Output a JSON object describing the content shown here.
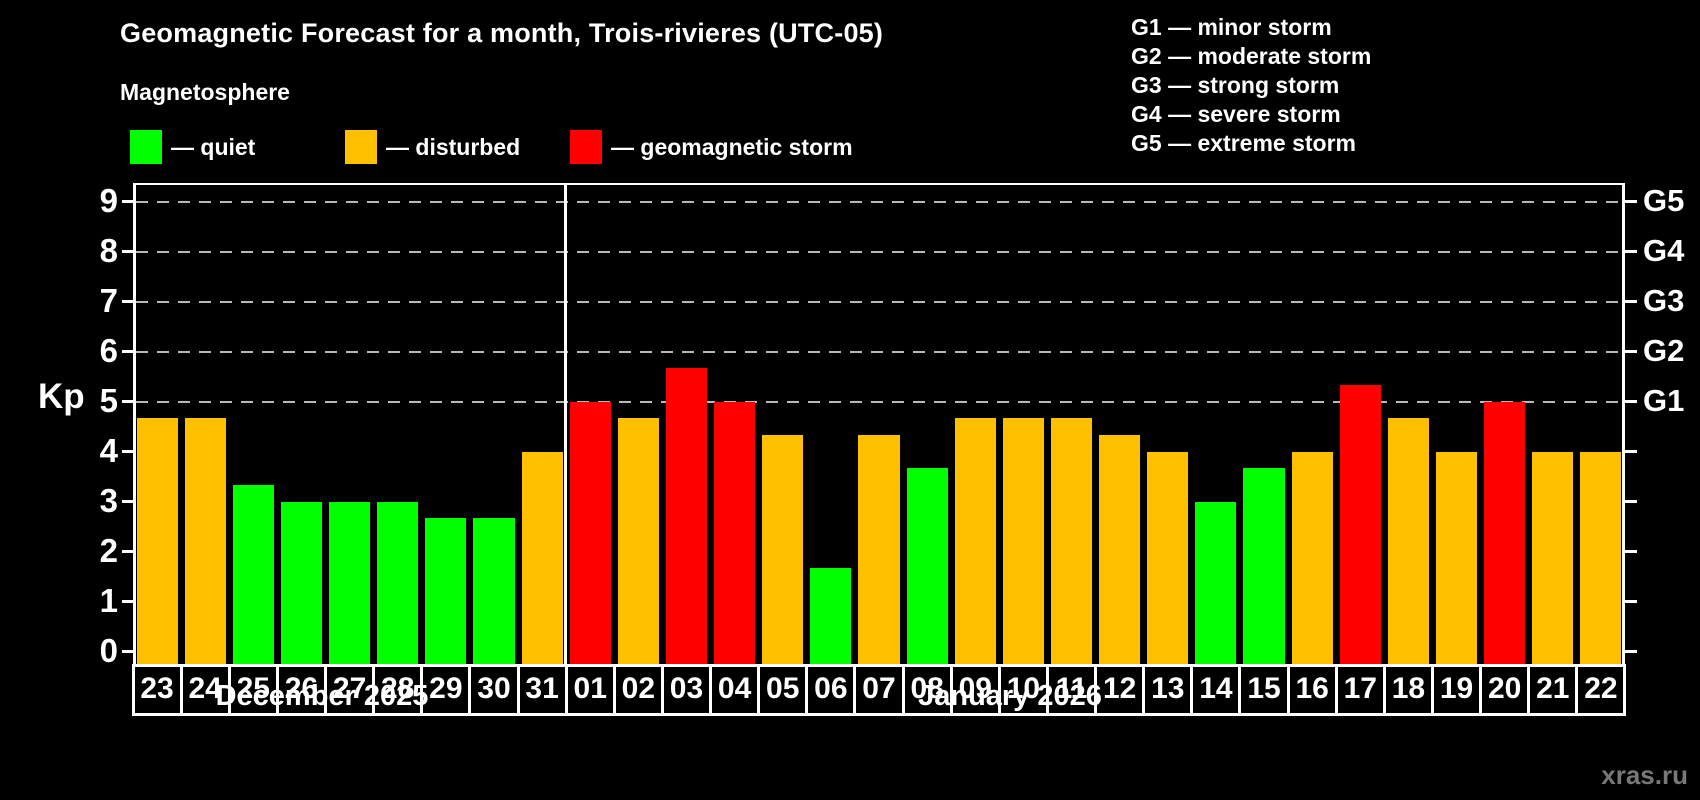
{
  "title": "Geomagnetic Forecast for a month, Trois-rivieres (UTC-05)",
  "subtitle": "Magnetosphere",
  "legend_items": [
    {
      "name": "quiet",
      "label": "— quiet",
      "color": "#00ff00"
    },
    {
      "name": "disturbed",
      "label": "— disturbed",
      "color": "#ffc000"
    },
    {
      "name": "storm",
      "label": "— geomagnetic storm",
      "color": "#ff0000"
    }
  ],
  "g_legend": [
    "G1 — minor storm",
    "G2 — moderate storm",
    "G3 — strong storm",
    "G4 — severe storm",
    "G5 — extreme storm"
  ],
  "watermark": "xras.ru",
  "chart_data": {
    "type": "bar",
    "title": "Geomagnetic Forecast for a month, Trois-rivieres (UTC-05)",
    "ylabel": "Kp",
    "ylim": [
      0,
      9
    ],
    "yticks": [
      0,
      1,
      2,
      3,
      4,
      5,
      6,
      7,
      8,
      9
    ],
    "right_axis_ticks": [
      {
        "kp": 5,
        "label": "G1"
      },
      {
        "kp": 6,
        "label": "G2"
      },
      {
        "kp": 7,
        "label": "G3"
      },
      {
        "kp": 8,
        "label": "G4"
      },
      {
        "kp": 9,
        "label": "G5"
      }
    ],
    "gridlines_at_kp": [
      5,
      6,
      7,
      8,
      9
    ],
    "grid_style": "dashed",
    "legend_position": "top-left",
    "months": [
      {
        "label": "December 2025",
        "start_index": 0,
        "days": 9
      },
      {
        "label": "January 2026",
        "start_index": 9,
        "days": 22
      }
    ],
    "categories": [
      "23",
      "24",
      "25",
      "26",
      "27",
      "28",
      "29",
      "30",
      "31",
      "01",
      "02",
      "03",
      "04",
      "05",
      "06",
      "07",
      "08",
      "09",
      "10",
      "11",
      "12",
      "13",
      "14",
      "15",
      "16",
      "17",
      "18",
      "19",
      "20",
      "21",
      "22"
    ],
    "series": [
      {
        "name": "Kp forecast",
        "values": [
          4.67,
          4.67,
          3.33,
          3,
          3,
          3,
          2.67,
          2.67,
          4,
          5,
          4.67,
          5.67,
          5,
          4.33,
          1.67,
          4.33,
          3.67,
          4.67,
          4.67,
          4.67,
          4.33,
          4,
          3,
          3.67,
          4,
          5.33,
          4.67,
          4,
          5,
          4,
          4
        ]
      }
    ],
    "bar_status": [
      "disturbed",
      "disturbed",
      "quiet",
      "quiet",
      "quiet",
      "quiet",
      "quiet",
      "quiet",
      "disturbed",
      "storm",
      "disturbed",
      "storm",
      "storm",
      "disturbed",
      "quiet",
      "disturbed",
      "quiet",
      "disturbed",
      "disturbed",
      "disturbed",
      "disturbed",
      "disturbed",
      "quiet",
      "quiet",
      "disturbed",
      "storm",
      "disturbed",
      "disturbed",
      "storm",
      "disturbed",
      "disturbed"
    ],
    "status_colors": {
      "quiet": "#00ff00",
      "disturbed": "#ffc000",
      "storm": "#ff0000"
    }
  }
}
